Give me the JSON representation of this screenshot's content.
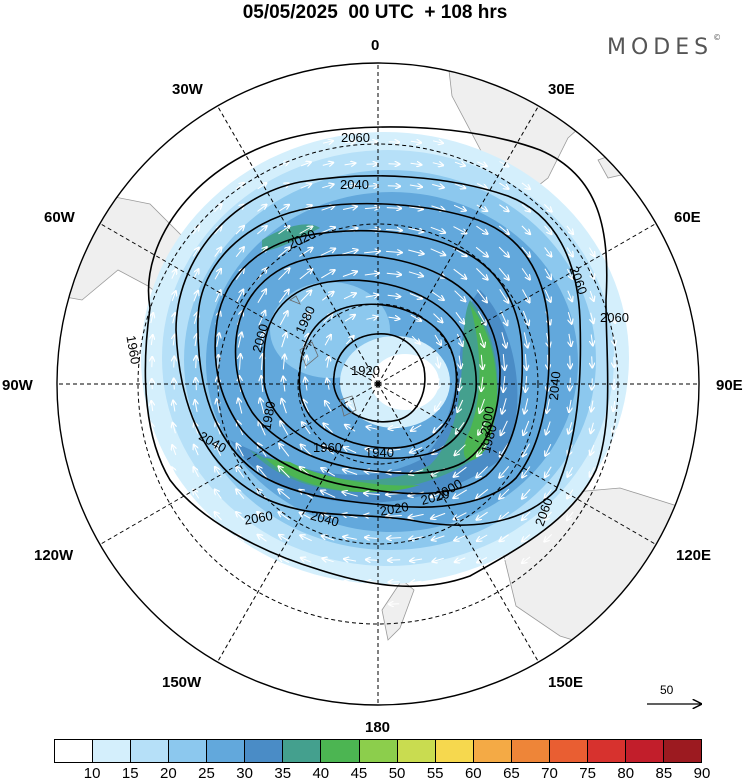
{
  "header": {
    "title": "05/05/2025  00 UTC  + 108 hrs",
    "brand": "MODES",
    "brand_mark": "©"
  },
  "map": {
    "projection": "south-polar-stereographic",
    "longitude_labels": [
      "0",
      "30E",
      "60E",
      "90E",
      "120E",
      "150E",
      "180",
      "150W",
      "120W",
      "90W",
      "60W",
      "30W"
    ],
    "contour_labels": [
      "2060",
      "2040",
      "2020",
      "2000",
      "1980",
      "1960",
      "1940",
      "1920",
      "2060",
      "2040",
      "2020",
      "2000",
      "1980",
      "1960",
      "2060",
      "2060",
      "2060",
      "2040",
      "2040",
      "2020",
      "2000",
      "1980"
    ],
    "contour_levels": [
      1920,
      1940,
      1960,
      1980,
      2000,
      2020,
      2040,
      2060
    ],
    "vector_reference": "50"
  },
  "colorbar": {
    "ticks": [
      "10",
      "15",
      "20",
      "25",
      "30",
      "35",
      "40",
      "45",
      "50",
      "55",
      "60",
      "65",
      "70",
      "75",
      "80",
      "85",
      "90"
    ],
    "colors": [
      "#ffffff",
      "#d4effc",
      "#b6e0f8",
      "#8cc8ee",
      "#62a8dc",
      "#4a8cc6",
      "#44a08e",
      "#4cb552",
      "#8cce4c",
      "#c9dc50",
      "#f6d84e",
      "#f4aa45",
      "#ee8538",
      "#e95e32",
      "#d7322e",
      "#c21e2b",
      "#9c1a20"
    ]
  }
}
